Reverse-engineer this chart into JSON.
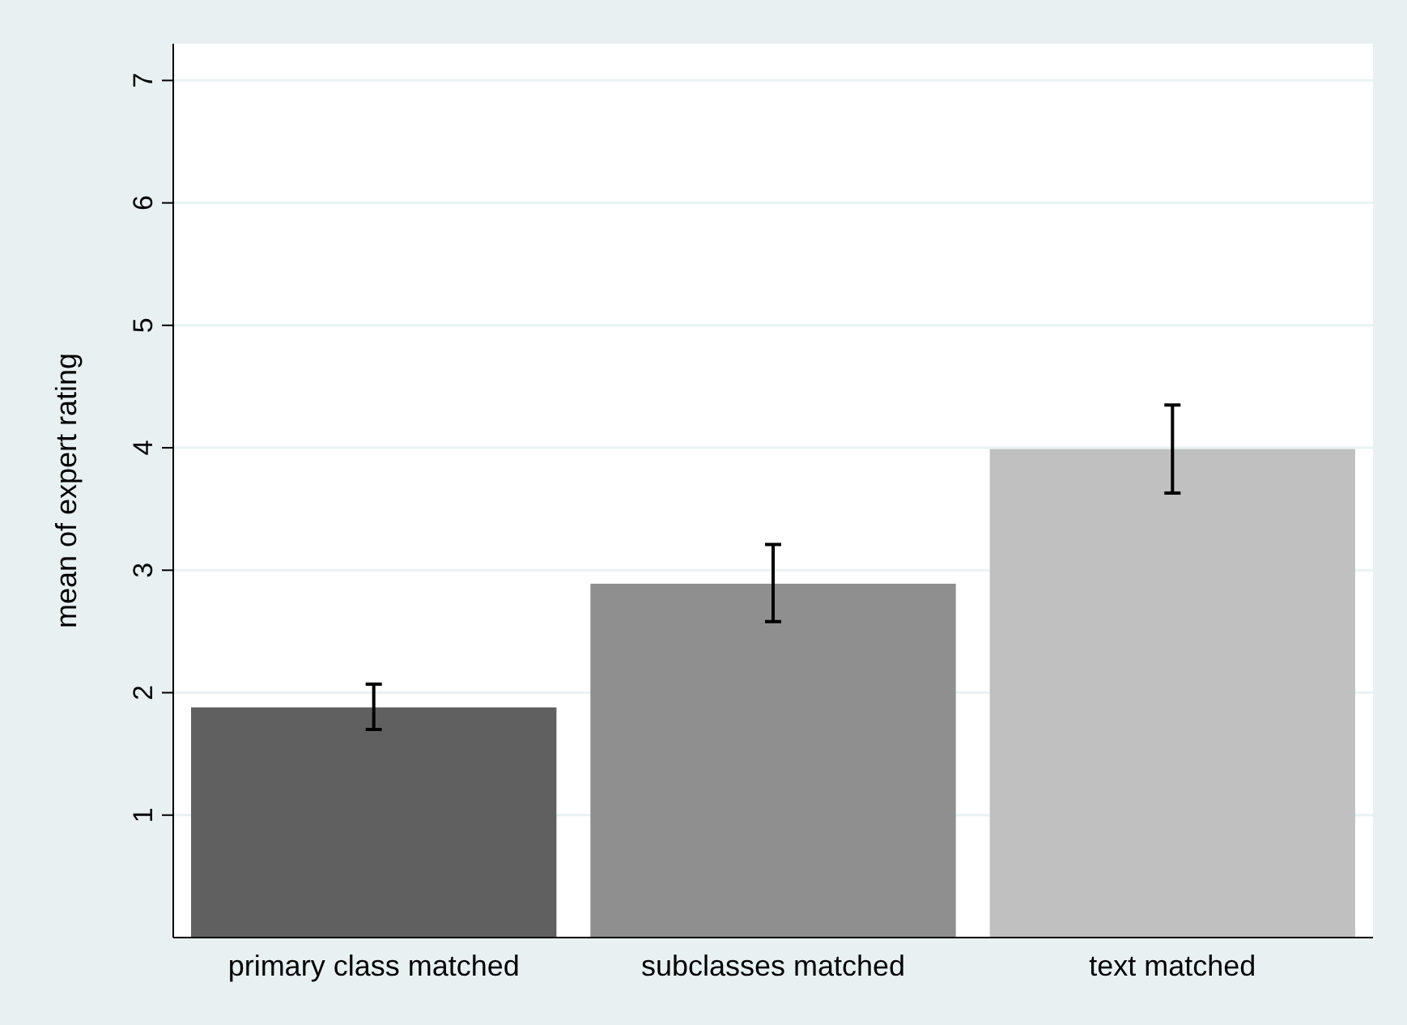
{
  "chart_data": {
    "type": "bar",
    "ylabel": "mean of expert rating",
    "categories": [
      "primary class matched",
      "subclasses matched",
      "text matched"
    ],
    "values": [
      1.88,
      2.89,
      3.99
    ],
    "colors": [
      "#606060",
      "#8f8f8f",
      "#c0c0c0"
    ],
    "errors": [
      [
        1.7,
        2.07
      ],
      [
        2.58,
        3.21
      ],
      [
        3.63,
        4.35
      ]
    ],
    "ylim": [
      0,
      7.3
    ],
    "yticks": [
      1,
      2,
      3,
      4,
      5,
      6,
      7
    ],
    "grid": "y"
  }
}
